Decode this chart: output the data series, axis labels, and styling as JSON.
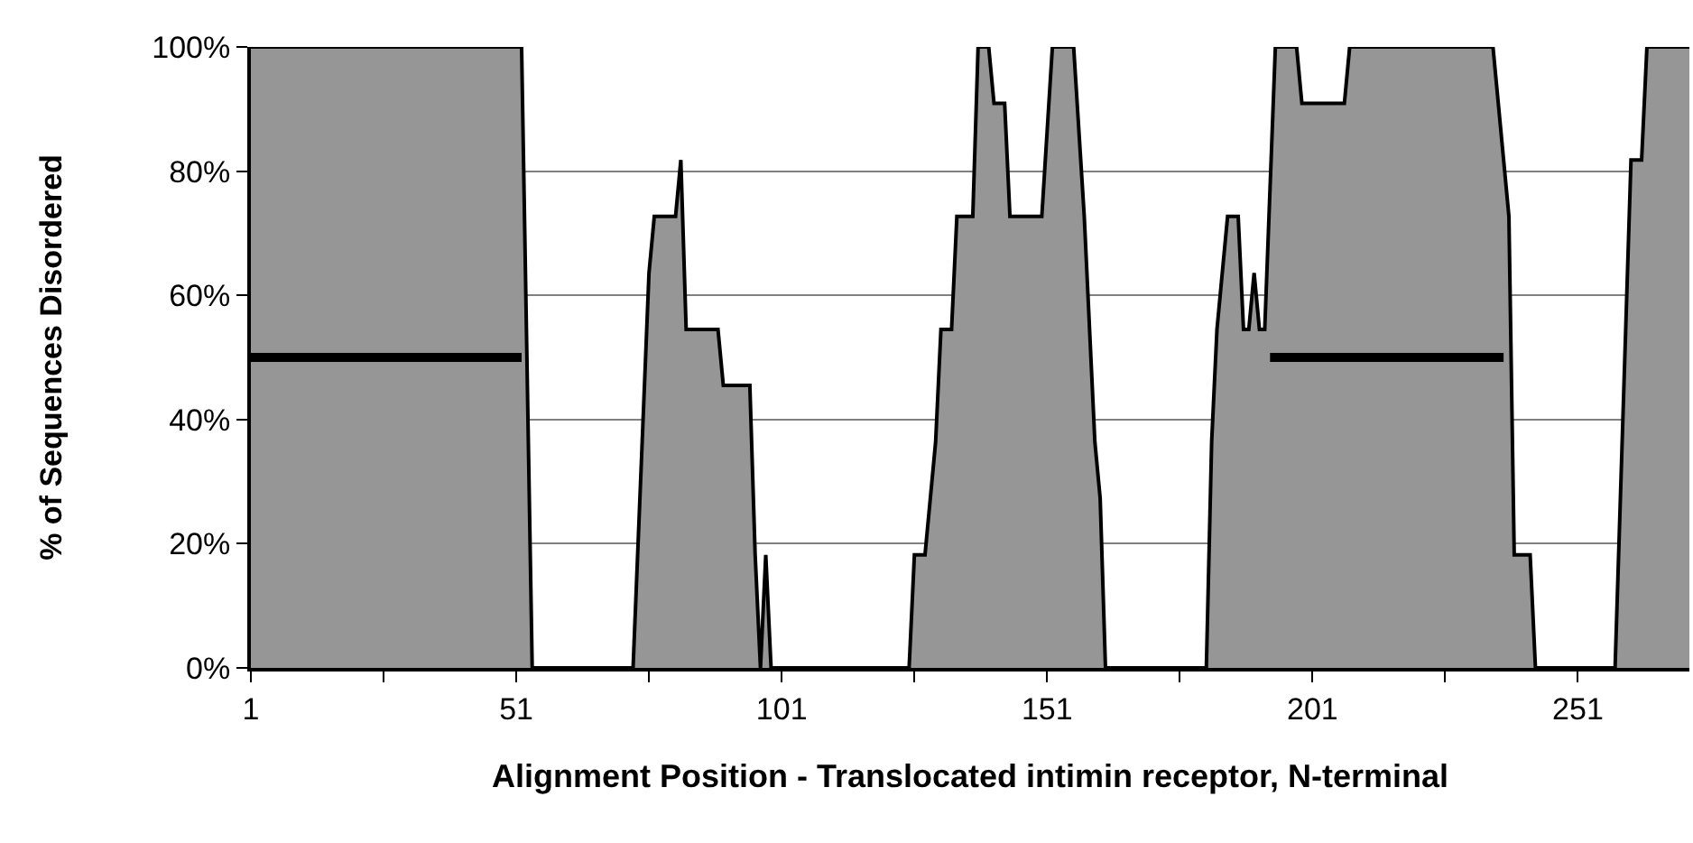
{
  "chart_data": {
    "type": "area",
    "xlabel": "Alignment Position - Translocated intimin receptor, N-terminal",
    "ylabel": "% of Sequences Disordered",
    "series": [
      {
        "color": "#969696",
        "x": [
          1,
          52,
          54,
          73,
          76,
          77,
          81,
          82,
          83,
          89,
          90,
          95,
          96,
          97,
          98,
          99,
          100,
          125,
          126,
          128,
          130,
          131,
          133,
          134,
          137,
          138,
          140,
          141,
          143,
          144,
          150,
          152,
          156,
          158,
          160,
          161,
          162,
          181,
          182,
          183,
          185,
          187,
          188,
          189,
          190,
          191,
          192,
          194,
          198,
          199,
          207,
          208,
          235,
          236,
          238,
          239,
          242,
          243,
          258,
          259,
          261,
          263,
          264,
          272
        ],
        "values": [
          100,
          100,
          0,
          0,
          63.6,
          72.7,
          72.7,
          81.8,
          54.5,
          54.5,
          45.5,
          45.5,
          18.2,
          0,
          18.2,
          0,
          0,
          0,
          18.2,
          18.2,
          36.4,
          54.5,
          54.5,
          72.7,
          72.7,
          100,
          100,
          90.9,
          90.9,
          72.7,
          72.7,
          100,
          100,
          72.7,
          36.4,
          27.3,
          0,
          0,
          36.4,
          54.5,
          72.7,
          72.7,
          54.5,
          54.5,
          63.6,
          54.5,
          54.5,
          100,
          100,
          90.9,
          90.9,
          100,
          100,
          90.9,
          72.7,
          18.2,
          18.2,
          0,
          0,
          27.3,
          81.8,
          81.8,
          100,
          100
        ]
      },
      {
        "type": "line",
        "color": "#000000",
        "x": [
          1,
          52,
          53,
          193,
          237
        ],
        "values": [
          50,
          50,
          null,
          50,
          50
        ]
      }
    ],
    "xlim": [
      1,
      272
    ],
    "xticks": [
      1,
      {
        "value": 26,
        "label": null
      },
      51,
      {
        "value": 76,
        "label": null
      },
      101,
      {
        "value": 126,
        "label": null
      },
      151,
      {
        "value": 176,
        "label": null
      },
      201,
      {
        "value": 226,
        "label": null
      },
      251
    ],
    "ylim": [
      0,
      100
    ],
    "yticks": [
      {
        "value": 0,
        "label": "0%"
      },
      {
        "value": 20,
        "label": "20%"
      },
      {
        "value": 40,
        "label": "40%"
      },
      {
        "value": 60,
        "label": "60%"
      },
      {
        "value": 80,
        "label": "80%"
      },
      {
        "value": 100,
        "label": "100%"
      }
    ],
    "grid": "y"
  }
}
